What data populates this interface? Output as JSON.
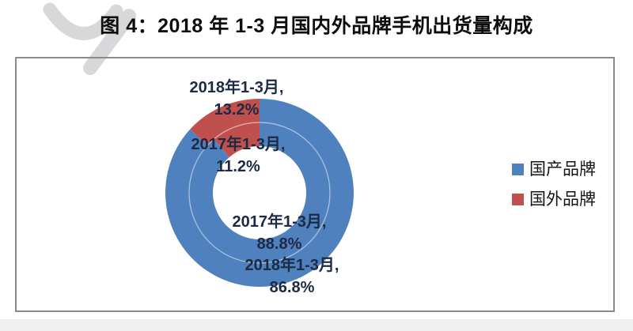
{
  "header": {
    "title": "图 4：2018 年 1-3 月国内外品牌手机出货量构成"
  },
  "chart_data": {
    "type": "pie",
    "subtype": "double_ring_donut",
    "title": "2018 年 1-3 月国内外品牌手机出货量构成",
    "categories": [
      "国产品牌",
      "国外品牌"
    ],
    "series": [
      {
        "name": "2017年1-3月",
        "ring": "inner",
        "values": [
          88.8,
          11.2
        ]
      },
      {
        "name": "2018年1-3月",
        "ring": "outer",
        "values": [
          86.8,
          13.2
        ]
      }
    ],
    "unit": "%",
    "colors": {
      "国产品牌": "#4E81BD",
      "国外品牌": "#C0504D"
    },
    "start_angle_deg": 0,
    "direction": "clockwise",
    "legend_position": "right",
    "data_labels": [
      {
        "line1": "2018年1-3月,",
        "line2": "13.2%"
      },
      {
        "line1": "2017年1-3月,",
        "line2": "11.2%"
      },
      {
        "line1": "2017年1-3月,",
        "line2": "88.8%"
      },
      {
        "line1": "2018年1-3月,",
        "line2": "86.8%"
      }
    ]
  },
  "legend": {
    "items": [
      {
        "label": "国产品牌"
      },
      {
        "label": "国外品牌"
      }
    ]
  },
  "styles": {
    "ring_blue": "#4E81BD",
    "ring_red": "#C0504D",
    "ring_separator": "rgba(255,255,255,0.45)",
    "panel_border": "#8b8b8b",
    "label_text": "#1e2a44",
    "watermark": "#d8d8da"
  }
}
